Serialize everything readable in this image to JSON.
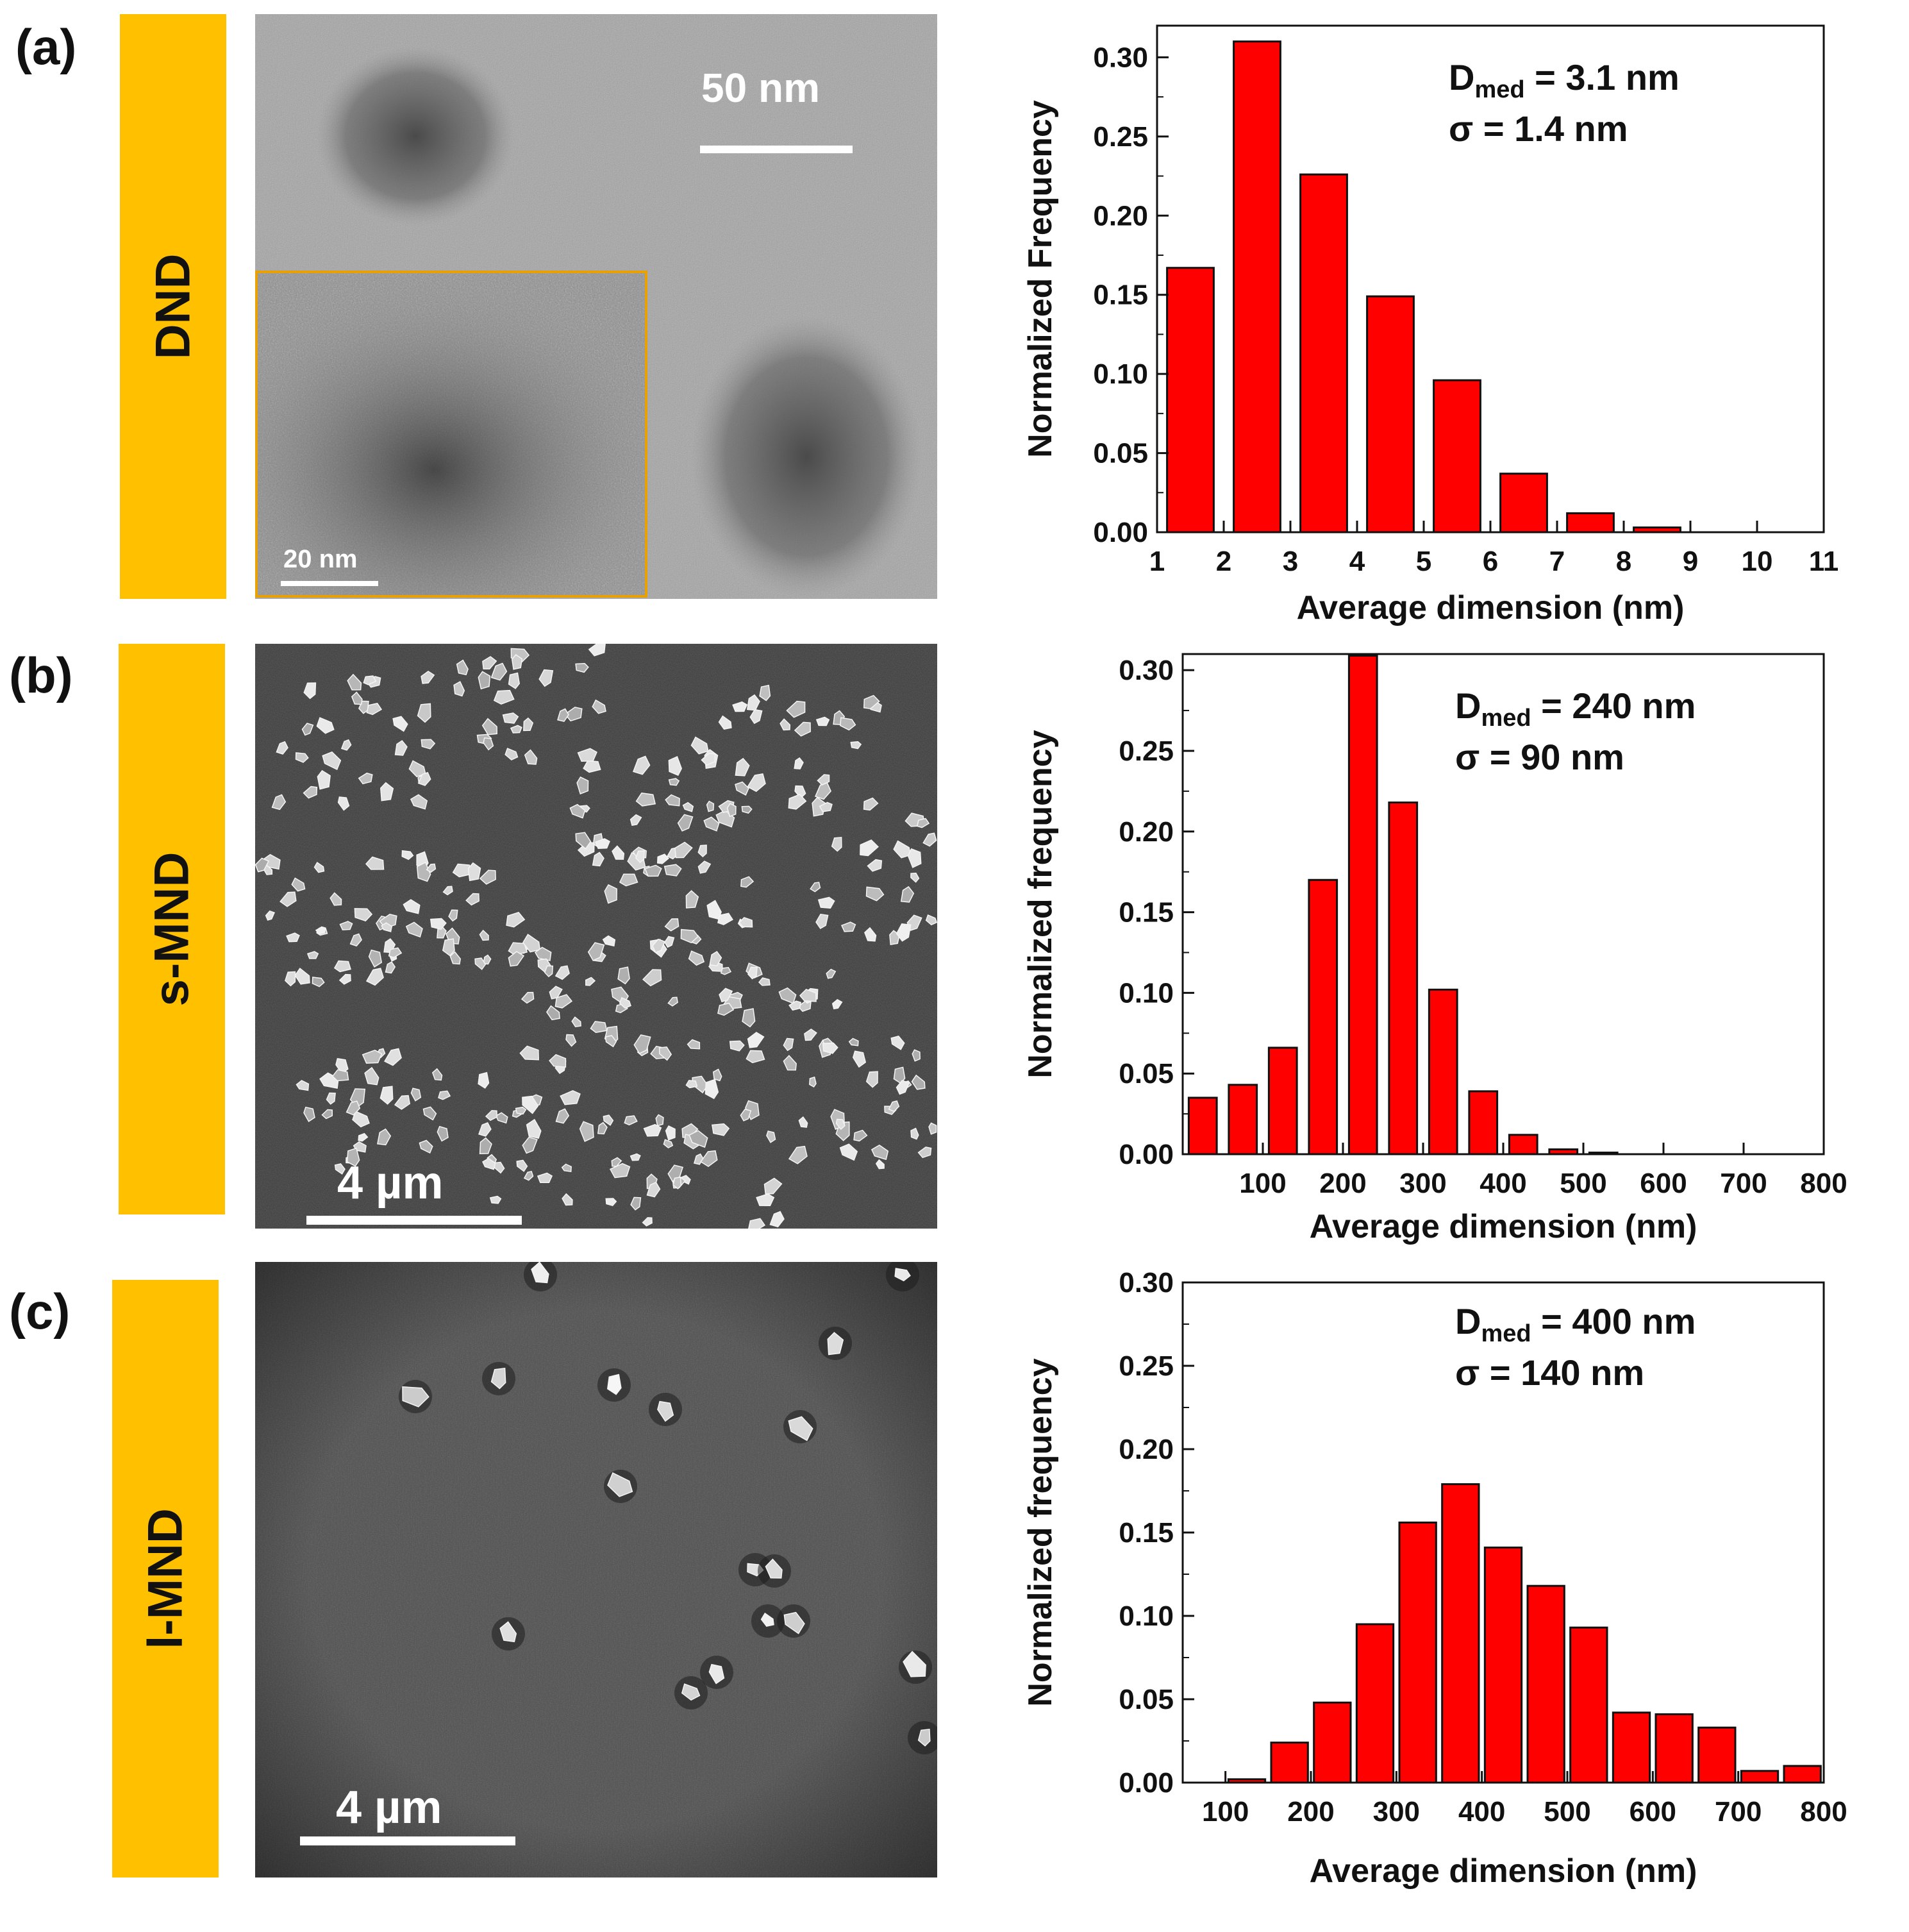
{
  "colors": {
    "bar_fill": "#FF0000",
    "bar_stroke": "#111111",
    "sample_tag": "#FFC000",
    "inset_frame": "#E8A100"
  },
  "panels": [
    {
      "letter": "(a)",
      "sample": "DND",
      "scale_main": "50 nm",
      "scale_inset": "20 nm",
      "annotation": {
        "d_prefix": "D",
        "d_sub": "med",
        "d_value": " = 3.1 nm",
        "sigma": "σ = 1.4 nm"
      }
    },
    {
      "letter": "(b)",
      "sample": "s-MND",
      "scale_main": "4 µm",
      "annotation": {
        "d_prefix": "D",
        "d_sub": "med",
        "d_value": " = 240 nm",
        "sigma": "σ = 90 nm"
      }
    },
    {
      "letter": "(c)",
      "sample": "l-MND",
      "scale_main": "4 µm",
      "annotation": {
        "d_prefix": "D",
        "d_sub": "med",
        "d_value": " = 400 nm",
        "sigma": "σ = 140 nm"
      }
    }
  ],
  "chart_data": [
    {
      "type": "bar",
      "title": "",
      "xlabel": "Average dimension (nm)",
      "ylabel": "Normalized Frequency",
      "xlim": [
        1,
        11
      ],
      "ylim": [
        0,
        0.32
      ],
      "xticks": [
        1,
        2,
        3,
        4,
        5,
        6,
        7,
        8,
        9,
        10,
        11
      ],
      "yticks": [
        0.0,
        0.05,
        0.1,
        0.15,
        0.2,
        0.25,
        0.3
      ],
      "bin_width": 0.7,
      "x": [
        1.5,
        2.5,
        3.5,
        4.5,
        5.5,
        6.5,
        7.5,
        8.5
      ],
      "values": [
        0.167,
        0.31,
        0.226,
        0.149,
        0.096,
        0.037,
        0.012,
        0.003
      ]
    },
    {
      "type": "bar",
      "title": "",
      "xlabel": "Average dimension (nm)",
      "ylabel": "Normalized frequency",
      "xlim": [
        0,
        800
      ],
      "ylim": [
        0,
        0.31
      ],
      "xticks": [
        100,
        200,
        300,
        400,
        500,
        600,
        700,
        800
      ],
      "yticks": [
        0.0,
        0.05,
        0.1,
        0.15,
        0.2,
        0.25,
        0.3
      ],
      "bin_width": 35,
      "x": [
        25,
        75,
        125,
        175,
        225,
        275,
        325,
        375,
        425,
        475,
        525
      ],
      "values": [
        0.035,
        0.043,
        0.066,
        0.17,
        0.309,
        0.218,
        0.102,
        0.039,
        0.012,
        0.003,
        0.001
      ]
    },
    {
      "type": "bar",
      "title": "",
      "xlabel": "Average dimension (nm)",
      "ylabel": "Normalized frequency",
      "xlim": [
        50,
        800
      ],
      "ylim": [
        0,
        0.3
      ],
      "xticks": [
        100,
        200,
        300,
        400,
        500,
        600,
        700,
        800
      ],
      "yticks": [
        0.0,
        0.05,
        0.1,
        0.15,
        0.2,
        0.25,
        0.3
      ],
      "bin_width": 43,
      "x": [
        125,
        175,
        225,
        275,
        325,
        375,
        425,
        475,
        525,
        575,
        625,
        675,
        725,
        775
      ],
      "values": [
        0.002,
        0.024,
        0.048,
        0.095,
        0.156,
        0.179,
        0.141,
        0.118,
        0.093,
        0.042,
        0.041,
        0.033,
        0.007,
        0.01
      ]
    }
  ]
}
